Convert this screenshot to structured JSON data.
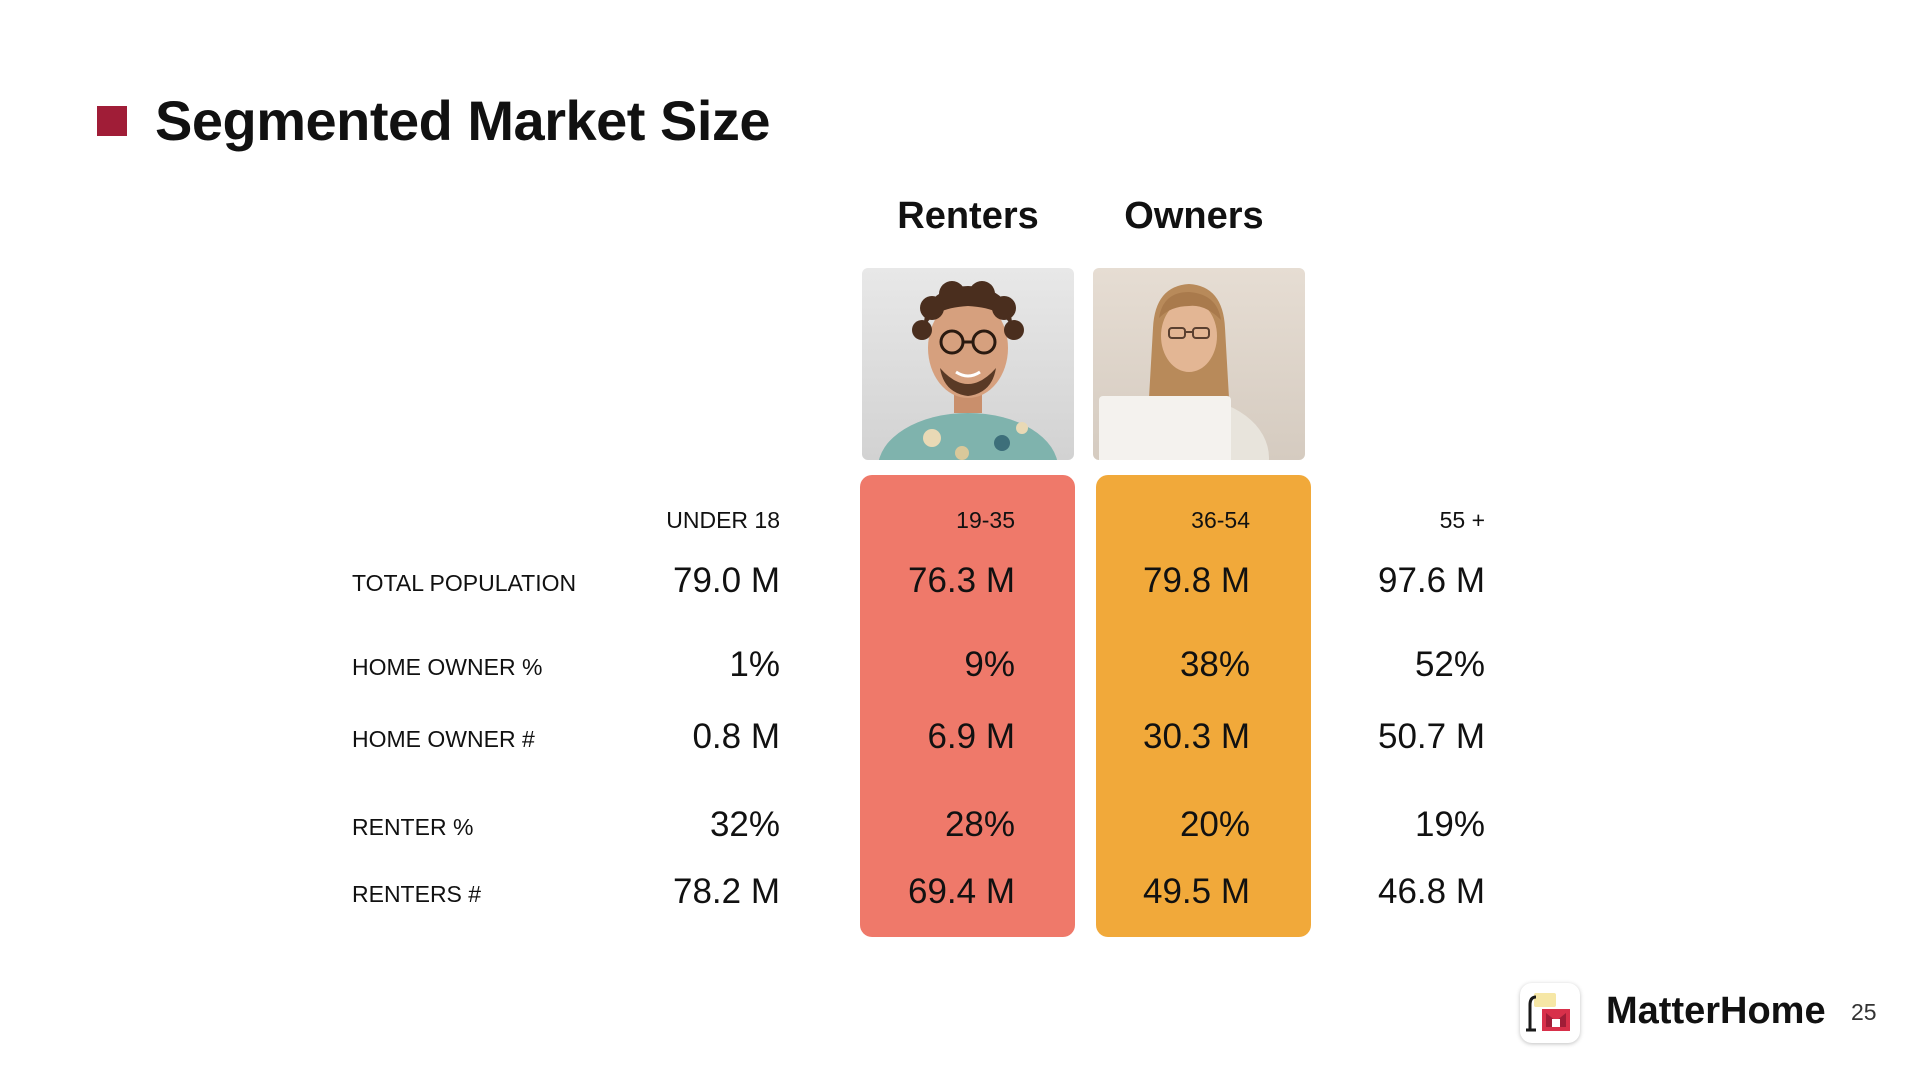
{
  "slide": {
    "title": "Segmented Market Size",
    "page_number": "25",
    "brand": "MatterHome"
  },
  "segments": {
    "renters_label": "Renters",
    "owners_label": "Owners"
  },
  "table": {
    "age_groups": [
      "UNDER 18",
      "19-35",
      "36-54",
      "55 +"
    ],
    "rows": [
      {
        "label": "TOTAL POPULATION",
        "values": [
          "79.0 M",
          "76.3 M",
          "79.8 M",
          "97.6 M"
        ]
      },
      {
        "label": "HOME OWNER %",
        "values": [
          "1%",
          "9%",
          "38%",
          "52%"
        ]
      },
      {
        "label": "HOME OWNER #",
        "values": [
          "0.8 M",
          "6.9 M",
          "30.3 M",
          "50.7 M"
        ]
      },
      {
        "label": "RENTER %",
        "values": [
          "32%",
          "28%",
          "20%",
          "19%"
        ]
      },
      {
        "label": "RENTERS #",
        "values": [
          "78.2 M",
          "69.4 M",
          "49.5 M",
          "46.8 M"
        ]
      }
    ]
  },
  "colors": {
    "accent": "#a01d37",
    "renters_column": "#ef796a",
    "owners_column": "#f1a93a"
  }
}
